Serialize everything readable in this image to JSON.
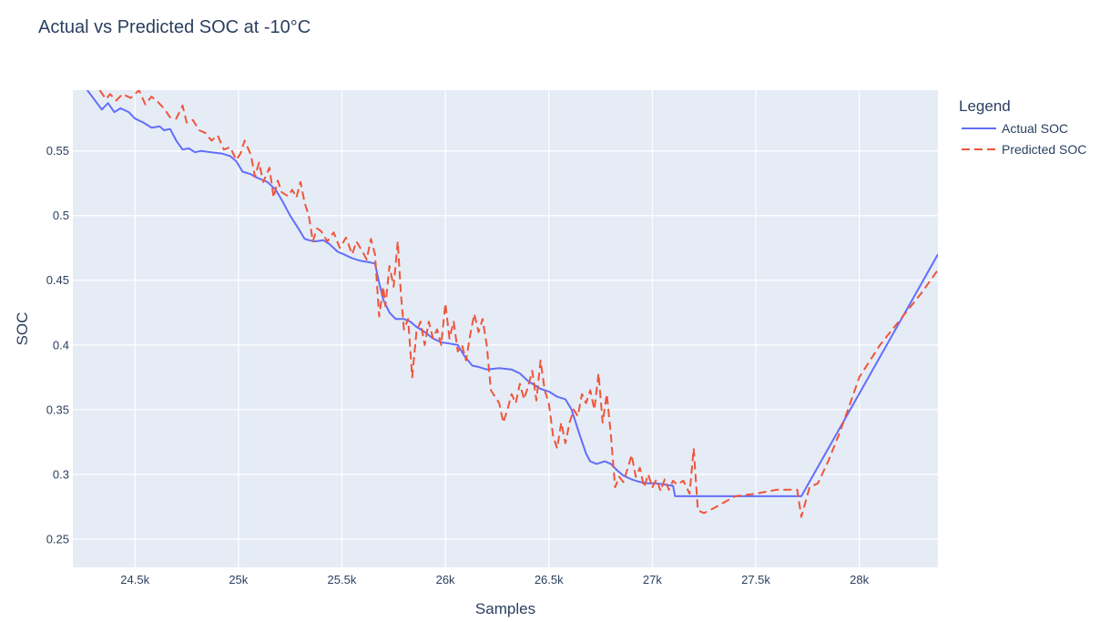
{
  "chart_data": {
    "type": "line",
    "title": "Actual vs Predicted SOC at -10°C",
    "xlabel": "Samples",
    "ylabel": "SOC",
    "xlim": [
      24200,
      28380
    ],
    "ylim": [
      0.228,
      0.597
    ],
    "x_ticks": [
      24500,
      25000,
      25500,
      26000,
      26500,
      27000,
      27500,
      28000
    ],
    "x_tick_labels": [
      "24.5k",
      "25k",
      "25.5k",
      "26k",
      "26.5k",
      "27k",
      "27.5k",
      "28k"
    ],
    "y_ticks": [
      0.25,
      0.3,
      0.35,
      0.4,
      0.45,
      0.5,
      0.55
    ],
    "y_tick_labels": [
      "0.25",
      "0.3",
      "0.35",
      "0.4",
      "0.45",
      "0.5",
      "0.55"
    ],
    "grid": true,
    "plot_background": "#e5ecf6",
    "legend": {
      "title": "Legend",
      "placement": "right"
    },
    "series": [
      {
        "name": "Actual SOC",
        "color": "#636efa",
        "dash": "solid",
        "points": [
          [
            24270,
            0.597
          ],
          [
            24340,
            0.582
          ],
          [
            24370,
            0.587
          ],
          [
            24400,
            0.58
          ],
          [
            24430,
            0.583
          ],
          [
            24470,
            0.58
          ],
          [
            24500,
            0.575
          ],
          [
            24540,
            0.572
          ],
          [
            24580,
            0.568
          ],
          [
            24620,
            0.569
          ],
          [
            24640,
            0.566
          ],
          [
            24670,
            0.567
          ],
          [
            24700,
            0.558
          ],
          [
            24730,
            0.551
          ],
          [
            24760,
            0.552
          ],
          [
            24790,
            0.549
          ],
          [
            24820,
            0.55
          ],
          [
            24870,
            0.549
          ],
          [
            24920,
            0.548
          ],
          [
            24960,
            0.546
          ],
          [
            24990,
            0.542
          ],
          [
            25020,
            0.534
          ],
          [
            25060,
            0.532
          ],
          [
            25080,
            0.53
          ],
          [
            25110,
            0.528
          ],
          [
            25140,
            0.526
          ],
          [
            25180,
            0.52
          ],
          [
            25210,
            0.512
          ],
          [
            25250,
            0.5
          ],
          [
            25290,
            0.49
          ],
          [
            25320,
            0.482
          ],
          [
            25340,
            0.481
          ],
          [
            25370,
            0.48
          ],
          [
            25410,
            0.481
          ],
          [
            25440,
            0.478
          ],
          [
            25480,
            0.472
          ],
          [
            25510,
            0.47
          ],
          [
            25550,
            0.467
          ],
          [
            25590,
            0.465
          ],
          [
            25630,
            0.464
          ],
          [
            25660,
            0.463
          ],
          [
            25680,
            0.448
          ],
          [
            25700,
            0.435
          ],
          [
            25730,
            0.425
          ],
          [
            25760,
            0.42
          ],
          [
            25800,
            0.42
          ],
          [
            25830,
            0.418
          ],
          [
            25860,
            0.414
          ],
          [
            25900,
            0.41
          ],
          [
            25940,
            0.405
          ],
          [
            25980,
            0.402
          ],
          [
            26020,
            0.401
          ],
          [
            26060,
            0.4
          ],
          [
            26090,
            0.392
          ],
          [
            26130,
            0.384
          ],
          [
            26160,
            0.383
          ],
          [
            26200,
            0.381
          ],
          [
            26260,
            0.382
          ],
          [
            26320,
            0.381
          ],
          [
            26360,
            0.378
          ],
          [
            26400,
            0.372
          ],
          [
            26460,
            0.366
          ],
          [
            26500,
            0.364
          ],
          [
            26540,
            0.36
          ],
          [
            26580,
            0.358
          ],
          [
            26610,
            0.35
          ],
          [
            26650,
            0.33
          ],
          [
            26680,
            0.316
          ],
          [
            26700,
            0.31
          ],
          [
            26730,
            0.308
          ],
          [
            26770,
            0.31
          ],
          [
            26800,
            0.308
          ],
          [
            26830,
            0.303
          ],
          [
            26860,
            0.299
          ],
          [
            26900,
            0.296
          ],
          [
            26940,
            0.294
          ],
          [
            26980,
            0.293
          ],
          [
            27020,
            0.293
          ],
          [
            27060,
            0.292
          ],
          [
            27100,
            0.291
          ],
          [
            27110,
            0.283
          ],
          [
            27720,
            0.283
          ],
          [
            28380,
            0.47
          ]
        ]
      },
      {
        "name": "Predicted SOC",
        "color": "#ef553b",
        "dash": "dash",
        "points": [
          [
            24330,
            0.597
          ],
          [
            24360,
            0.59
          ],
          [
            24380,
            0.594
          ],
          [
            24410,
            0.589
          ],
          [
            24440,
            0.594
          ],
          [
            24480,
            0.591
          ],
          [
            24520,
            0.597
          ],
          [
            24550,
            0.586
          ],
          [
            24580,
            0.592
          ],
          [
            24610,
            0.588
          ],
          [
            24640,
            0.583
          ],
          [
            24670,
            0.576
          ],
          [
            24700,
            0.575
          ],
          [
            24730,
            0.585
          ],
          [
            24750,
            0.572
          ],
          [
            24780,
            0.574
          ],
          [
            24810,
            0.566
          ],
          [
            24840,
            0.564
          ],
          [
            24870,
            0.558
          ],
          [
            24900,
            0.562
          ],
          [
            24930,
            0.551
          ],
          [
            24960,
            0.553
          ],
          [
            24990,
            0.543
          ],
          [
            25010,
            0.548
          ],
          [
            25030,
            0.558
          ],
          [
            25060,
            0.547
          ],
          [
            25080,
            0.53
          ],
          [
            25100,
            0.541
          ],
          [
            25120,
            0.526
          ],
          [
            25150,
            0.537
          ],
          [
            25170,
            0.514
          ],
          [
            25190,
            0.527
          ],
          [
            25210,
            0.518
          ],
          [
            25240,
            0.515
          ],
          [
            25260,
            0.52
          ],
          [
            25280,
            0.514
          ],
          [
            25300,
            0.526
          ],
          [
            25320,
            0.51
          ],
          [
            25340,
            0.5
          ],
          [
            25360,
            0.48
          ],
          [
            25380,
            0.49
          ],
          [
            25400,
            0.488
          ],
          [
            25430,
            0.48
          ],
          [
            25460,
            0.487
          ],
          [
            25490,
            0.475
          ],
          [
            25520,
            0.483
          ],
          [
            25550,
            0.47
          ],
          [
            25570,
            0.48
          ],
          [
            25600,
            0.472
          ],
          [
            25620,
            0.466
          ],
          [
            25640,
            0.482
          ],
          [
            25660,
            0.47
          ],
          [
            25680,
            0.422
          ],
          [
            25700,
            0.445
          ],
          [
            25710,
            0.43
          ],
          [
            25730,
            0.461
          ],
          [
            25750,
            0.445
          ],
          [
            25770,
            0.48
          ],
          [
            25785,
            0.44
          ],
          [
            25800,
            0.412
          ],
          [
            25820,
            0.42
          ],
          [
            25840,
            0.375
          ],
          [
            25860,
            0.41
          ],
          [
            25880,
            0.418
          ],
          [
            25900,
            0.4
          ],
          [
            25920,
            0.418
          ],
          [
            25940,
            0.405
          ],
          [
            25960,
            0.412
          ],
          [
            25980,
            0.4
          ],
          [
            26000,
            0.432
          ],
          [
            26020,
            0.405
          ],
          [
            26040,
            0.418
          ],
          [
            26060,
            0.395
          ],
          [
            26080,
            0.4
          ],
          [
            26100,
            0.388
          ],
          [
            26120,
            0.408
          ],
          [
            26140,
            0.424
          ],
          [
            26160,
            0.41
          ],
          [
            26180,
            0.42
          ],
          [
            26200,
            0.4
          ],
          [
            26220,
            0.365
          ],
          [
            26240,
            0.36
          ],
          [
            26260,
            0.355
          ],
          [
            26280,
            0.34
          ],
          [
            26300,
            0.35
          ],
          [
            26320,
            0.362
          ],
          [
            26340,
            0.355
          ],
          [
            26360,
            0.37
          ],
          [
            26380,
            0.358
          ],
          [
            26400,
            0.368
          ],
          [
            26420,
            0.38
          ],
          [
            26440,
            0.357
          ],
          [
            26460,
            0.388
          ],
          [
            26480,
            0.365
          ],
          [
            26500,
            0.355
          ],
          [
            26520,
            0.33
          ],
          [
            26540,
            0.32
          ],
          [
            26560,
            0.34
          ],
          [
            26580,
            0.324
          ],
          [
            26600,
            0.34
          ],
          [
            26620,
            0.35
          ],
          [
            26640,
            0.345
          ],
          [
            26660,
            0.362
          ],
          [
            26680,
            0.355
          ],
          [
            26700,
            0.365
          ],
          [
            26720,
            0.35
          ],
          [
            26740,
            0.378
          ],
          [
            26760,
            0.34
          ],
          [
            26780,
            0.362
          ],
          [
            26800,
            0.33
          ],
          [
            26820,
            0.29
          ],
          [
            26840,
            0.298
          ],
          [
            26860,
            0.294
          ],
          [
            26880,
            0.304
          ],
          [
            26900,
            0.315
          ],
          [
            26920,
            0.298
          ],
          [
            26940,
            0.305
          ],
          [
            26960,
            0.29
          ],
          [
            26980,
            0.3
          ],
          [
            27000,
            0.29
          ],
          [
            27020,
            0.296
          ],
          [
            27040,
            0.287
          ],
          [
            27060,
            0.296
          ],
          [
            27080,
            0.288
          ],
          [
            27100,
            0.295
          ],
          [
            27120,
            0.292
          ],
          [
            27150,
            0.295
          ],
          [
            27180,
            0.285
          ],
          [
            27200,
            0.32
          ],
          [
            27220,
            0.272
          ],
          [
            27250,
            0.27
          ],
          [
            27300,
            0.274
          ],
          [
            27400,
            0.283
          ],
          [
            27500,
            0.285
          ],
          [
            27600,
            0.288
          ],
          [
            27700,
            0.288
          ],
          [
            27720,
            0.267
          ],
          [
            27760,
            0.29
          ],
          [
            27800,
            0.293
          ],
          [
            27850,
            0.31
          ],
          [
            27900,
            0.33
          ],
          [
            27950,
            0.352
          ],
          [
            28000,
            0.375
          ],
          [
            28100,
            0.4
          ],
          [
            28200,
            0.42
          ],
          [
            28300,
            0.44
          ],
          [
            28380,
            0.458
          ]
        ]
      }
    ]
  }
}
